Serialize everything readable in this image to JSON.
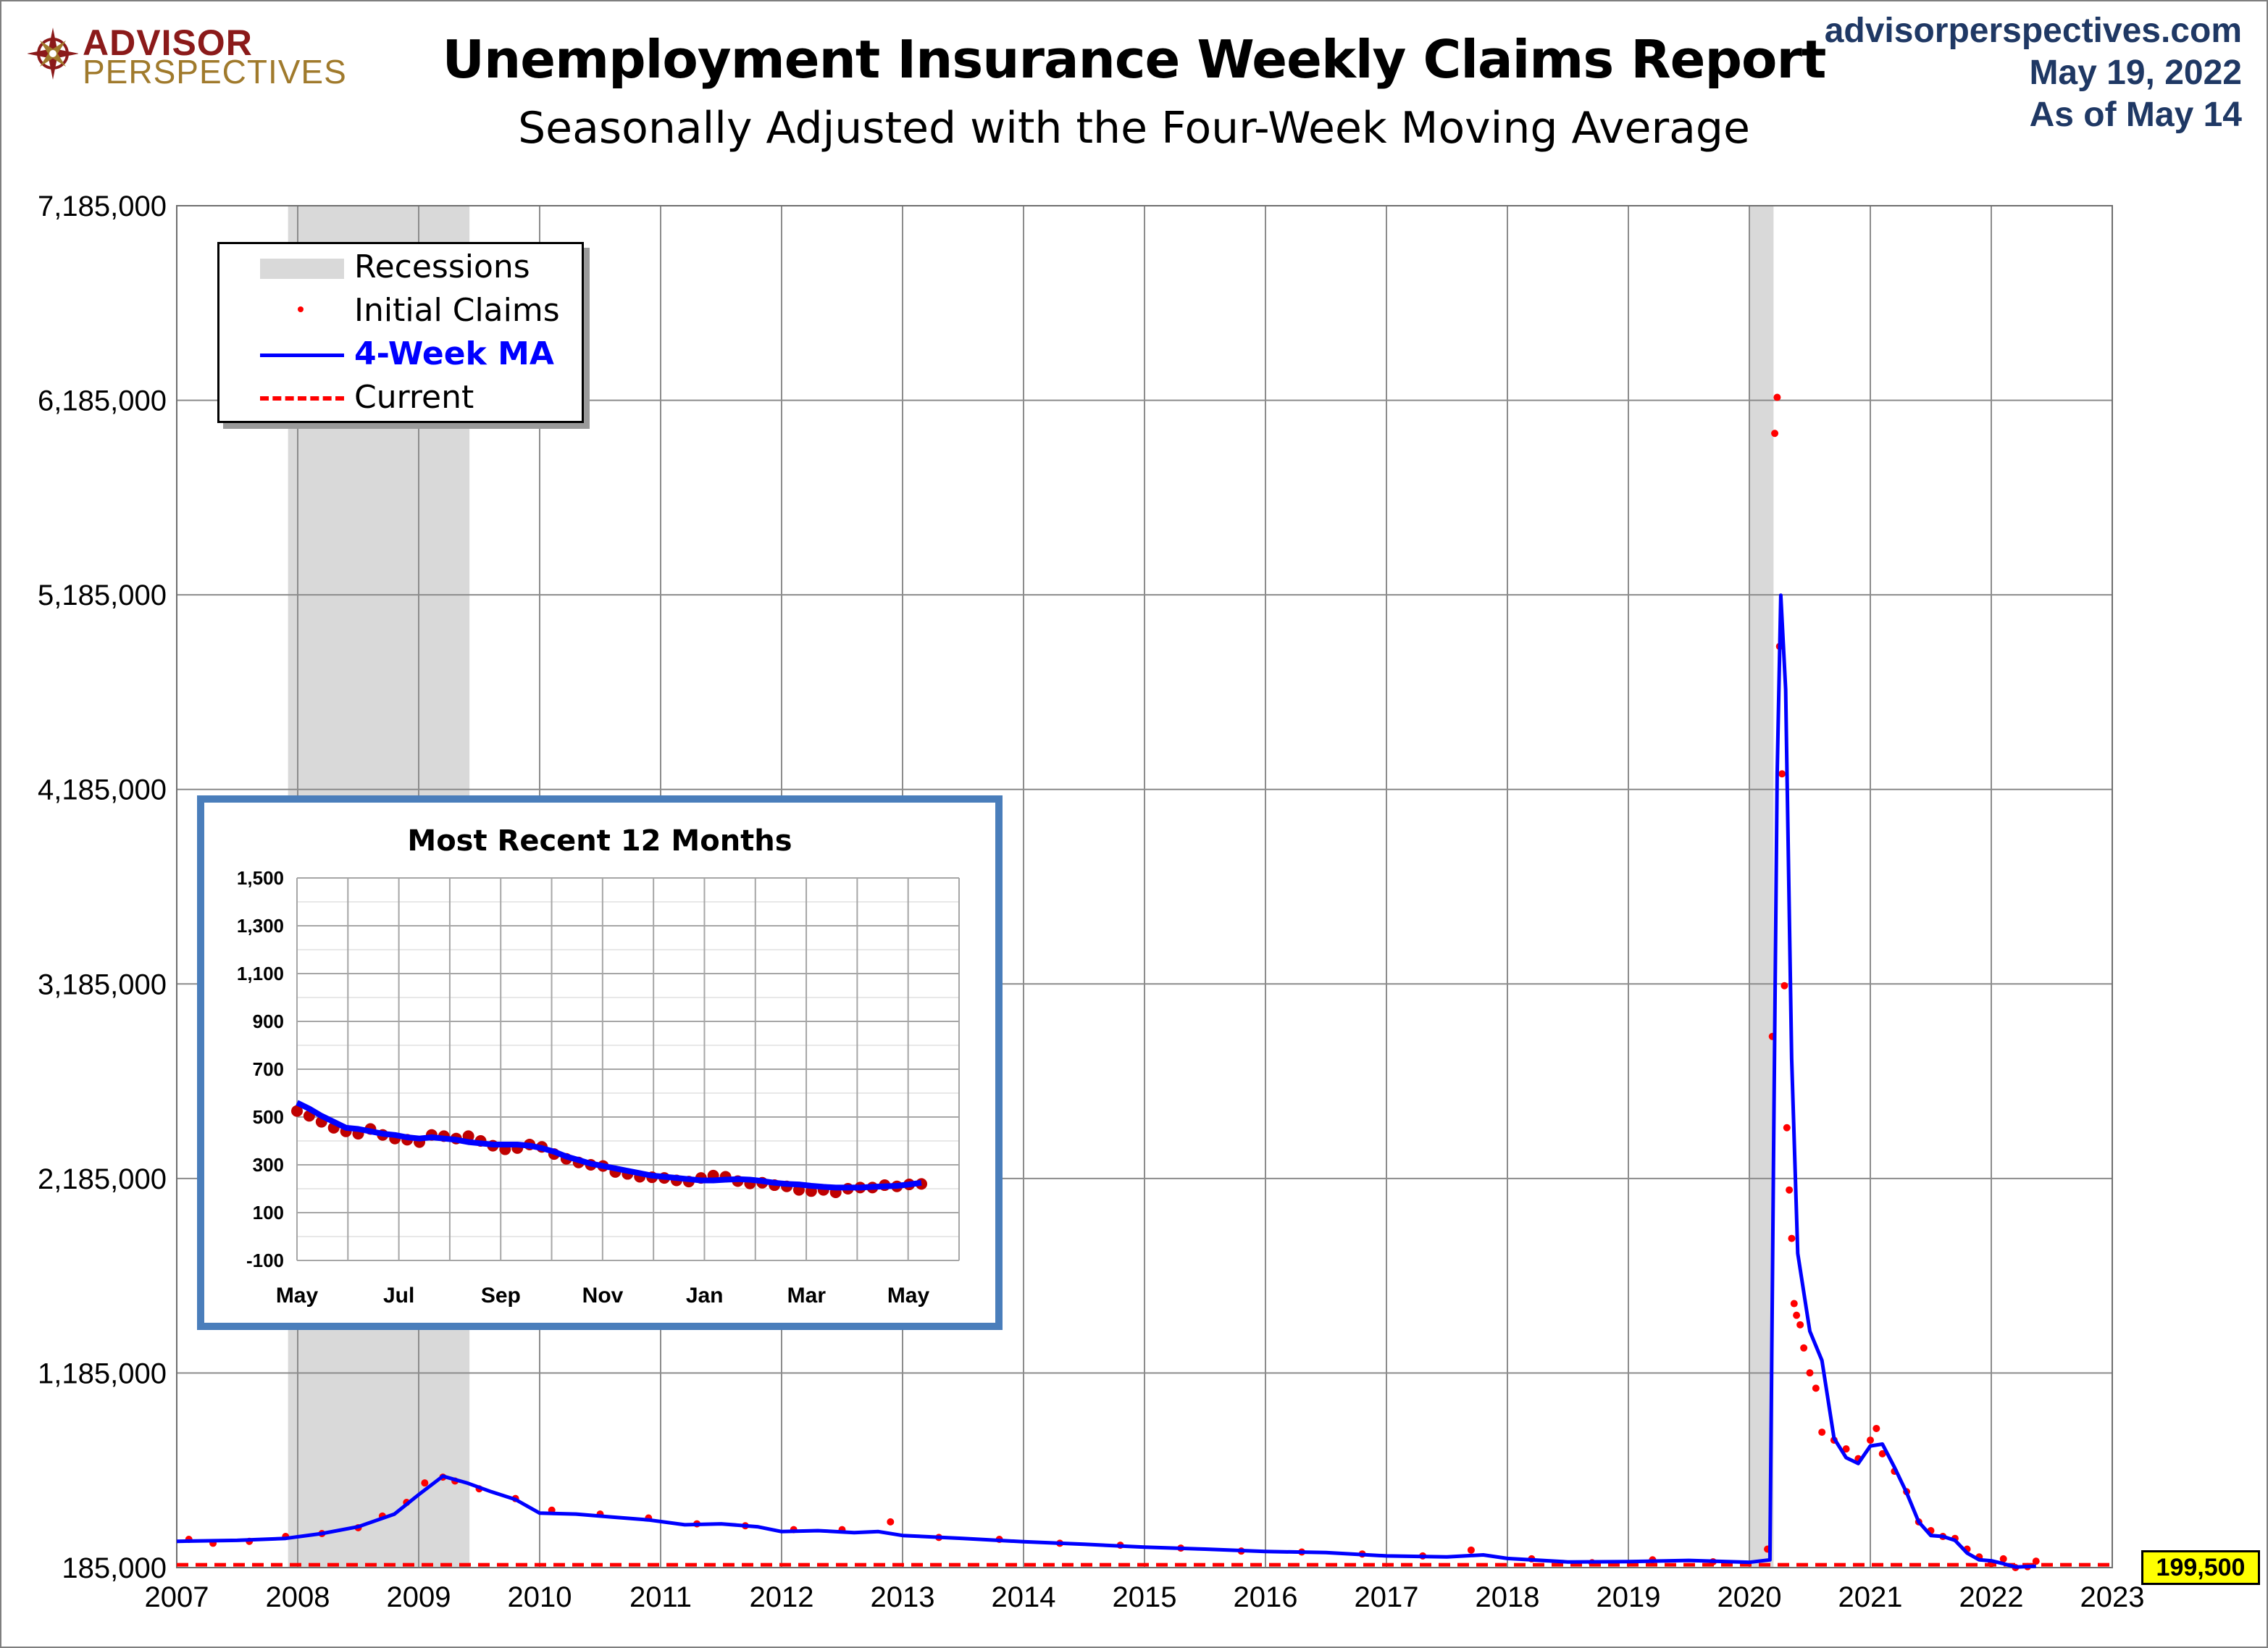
{
  "header": {
    "logo_line1": "ADVISOR",
    "logo_line2": "PERSPECTIVES",
    "title": "Unemployment Insurance Weekly Claims Report",
    "subtitle": "Seasonally Adjusted with the Four-Week Moving Average",
    "site": "advisorperspectives.com",
    "date": "May 19, 2022",
    "as_of": "As of May 14"
  },
  "legend": {
    "recessions": "Recessions",
    "initial_claims": "Initial Claims",
    "ma": "4-Week MA",
    "current": "Current"
  },
  "colors": {
    "ma_line": "#0000ff",
    "claims_dots": "#ff0000",
    "current_line": "#ff0000",
    "recession_band": "#d9d9d9",
    "inset_border": "#4a7ebb",
    "inset_dots": "#c00000",
    "badge": "#ffff00",
    "legend_ma_text": "#0000ff"
  },
  "current_label": "199,500",
  "chart_data": [
    {
      "type": "line",
      "title": "Unemployment Insurance Weekly Claims Report",
      "subtitle": "Seasonally Adjusted with the Four-Week Moving Average",
      "x_ticks": [
        "2007",
        "2008",
        "2009",
        "2010",
        "2011",
        "2012",
        "2013",
        "2014",
        "2015",
        "2016",
        "2017",
        "2018",
        "2019",
        "2020",
        "2021",
        "2022",
        "2023"
      ],
      "y_ticks": [
        "7,185,000",
        "6,185,000",
        "5,185,000",
        "4,185,000",
        "3,185,000",
        "2,185,000",
        "1,185,000",
        "185,000"
      ],
      "xlim": [
        2007,
        2023
      ],
      "ylim": [
        185000,
        7185000
      ],
      "grid": true,
      "legend_position": "top-left",
      "recessions": [
        [
          2007.92,
          2009.42
        ],
        [
          2020.0,
          2020.2
        ]
      ],
      "current": 199500,
      "series": [
        {
          "name": "4-Week MA",
          "x": [
            2007.0,
            2007.5,
            2007.9,
            2008.2,
            2008.5,
            2008.8,
            2009.0,
            2009.2,
            2009.4,
            2009.6,
            2009.8,
            2010.0,
            2010.3,
            2010.6,
            2010.9,
            2011.2,
            2011.5,
            2011.8,
            2012.0,
            2012.3,
            2012.6,
            2012.8,
            2013.0,
            2013.5,
            2014.0,
            2014.5,
            2015.0,
            2015.5,
            2016.0,
            2016.5,
            2017.0,
            2017.5,
            2017.8,
            2018.0,
            2018.5,
            2019.0,
            2019.5,
            2020.0,
            2020.17,
            2020.2,
            2020.23,
            2020.26,
            2020.3,
            2020.35,
            2020.4,
            2020.5,
            2020.6,
            2020.7,
            2020.8,
            2020.9,
            2021.0,
            2021.1,
            2021.2,
            2021.3,
            2021.4,
            2021.5,
            2021.6,
            2021.7,
            2021.8,
            2021.9,
            2022.0,
            2022.1,
            2022.2,
            2022.37
          ],
          "y": [
            320000,
            325000,
            335000,
            360000,
            395000,
            460000,
            560000,
            655000,
            620000,
            575000,
            535000,
            465000,
            460000,
            445000,
            430000,
            405000,
            410000,
            395000,
            370000,
            375000,
            365000,
            370000,
            350000,
            335000,
            318000,
            305000,
            290000,
            280000,
            268000,
            262000,
            245000,
            240000,
            250000,
            232000,
            214000,
            216000,
            222000,
            212000,
            225000,
            2300000,
            4265000,
            5183000,
            4700000,
            2800000,
            1800000,
            1400000,
            1250000,
            850000,
            750000,
            720000,
            810000,
            820000,
            700000,
            570000,
            420000,
            350000,
            345000,
            325000,
            260000,
            225000,
            220000,
            205000,
            188000,
            192000
          ]
        },
        {
          "name": "Initial Claims",
          "x": [
            2007.1,
            2007.3,
            2007.6,
            2007.9,
            2008.2,
            2008.5,
            2008.7,
            2008.9,
            2009.05,
            2009.2,
            2009.3,
            2009.5,
            2009.8,
            2010.1,
            2010.5,
            2010.9,
            2011.3,
            2011.7,
            2012.1,
            2012.5,
            2012.9,
            2013.3,
            2013.8,
            2014.3,
            2014.8,
            2015.3,
            2015.8,
            2016.3,
            2016.8,
            2017.3,
            2017.7,
            2018.2,
            2018.7,
            2019.2,
            2019.7,
            2020.15,
            2020.19,
            2020.21,
            2020.23,
            2020.25,
            2020.27,
            2020.29,
            2020.31,
            2020.33,
            2020.35,
            2020.37,
            2020.39,
            2020.42,
            2020.45,
            2020.5,
            2020.55,
            2020.6,
            2020.7,
            2020.8,
            2020.9,
            2021.0,
            2021.05,
            2021.1,
            2021.2,
            2021.3,
            2021.4,
            2021.5,
            2021.6,
            2021.7,
            2021.8,
            2021.9,
            2022.0,
            2022.1,
            2022.2,
            2022.3,
            2022.37
          ],
          "y": [
            330000,
            310000,
            320000,
            345000,
            360000,
            390000,
            450000,
            520000,
            620000,
            650000,
            630000,
            590000,
            540000,
            480000,
            460000,
            440000,
            410000,
            400000,
            380000,
            380000,
            420000,
            340000,
            330000,
            310000,
            300000,
            285000,
            270000,
            265000,
            255000,
            245000,
            275000,
            230000,
            210000,
            225000,
            215000,
            280000,
            2915000,
            6015000,
            6200000,
            4920000,
            4265000,
            3176000,
            2446000,
            2126000,
            1877000,
            1542000,
            1482000,
            1433000,
            1314000,
            1186000,
            1107000,
            881000,
            840000,
            795000,
            745000,
            840000,
            900000,
            770000,
            680000,
            575000,
            420000,
            375000,
            345000,
            335000,
            280000,
            240000,
            205000,
            230000,
            185000,
            190000,
            218000
          ]
        }
      ]
    },
    {
      "type": "line",
      "title": "Most Recent 12 Months",
      "x_ticks": [
        "May",
        "Jul",
        "Sep",
        "Nov",
        "Jan",
        "Mar",
        "May"
      ],
      "y_ticks": [
        "1,500",
        "1,300",
        "1,100",
        "900",
        "700",
        "500",
        "300",
        "100",
        "-100"
      ],
      "ylim": [
        -100,
        1500
      ],
      "grid": true,
      "series": [
        {
          "name": "4-Week MA",
          "y": [
            560,
            535,
            505,
            480,
            455,
            450,
            440,
            430,
            425,
            415,
            410,
            415,
            410,
            405,
            395,
            390,
            385,
            385,
            385,
            380,
            370,
            355,
            335,
            320,
            305,
            295,
            285,
            275,
            265,
            255,
            250,
            245,
            240,
            235,
            235,
            238,
            240,
            238,
            232,
            225,
            220,
            218,
            212,
            208,
            205,
            205,
            205,
            208,
            210,
            212,
            218,
            225
          ]
        },
        {
          "name": "Initial Claims",
          "y": [
            525,
            505,
            480,
            455,
            440,
            430,
            450,
            425,
            410,
            405,
            395,
            425,
            420,
            410,
            420,
            400,
            380,
            365,
            370,
            385,
            375,
            345,
            325,
            310,
            300,
            295,
            270,
            262,
            250,
            248,
            245,
            235,
            230,
            245,
            255,
            250,
            232,
            222,
            225,
            215,
            210,
            195,
            190,
            195,
            185,
            200,
            205,
            205,
            215,
            210,
            218,
            220
          ]
        }
      ]
    }
  ]
}
